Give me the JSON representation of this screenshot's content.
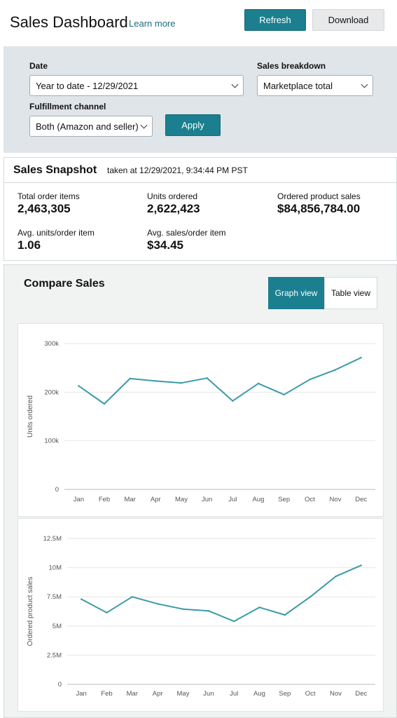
{
  "header": {
    "title": "Sales Dashboard",
    "learn_more": "Learn more",
    "refresh": "Refresh",
    "download": "Download"
  },
  "filters": {
    "date_label": "Date",
    "date_value": "Year to date - 12/29/2021",
    "breakdown_label": "Sales breakdown",
    "breakdown_value": "Marketplace total",
    "channel_label": "Fulfillment channel",
    "channel_value": "Both (Amazon and seller)",
    "apply": "Apply"
  },
  "snapshot": {
    "title": "Sales Snapshot",
    "taken_at": "taken at 12/29/2021, 9:34:44 PM PST",
    "metrics": [
      {
        "label": "Total order items",
        "value": "2,463,305"
      },
      {
        "label": "Units ordered",
        "value": "2,622,423"
      },
      {
        "label": "Ordered product sales",
        "value": "$84,856,784.00"
      },
      {
        "label": "Avg. units/order item",
        "value": "1.06"
      },
      {
        "label": "Avg. sales/order item",
        "value": "$34.45"
      }
    ]
  },
  "compare": {
    "title": "Compare Sales",
    "graph_view": "Graph view",
    "table_view": "Table view",
    "active_view": "Graph view"
  },
  "colors": {
    "accent": "#1b7f8f",
    "line": "#3a9ba6"
  },
  "chart_data": [
    {
      "type": "line",
      "title": "",
      "xlabel": "",
      "ylabel": "Units ordered",
      "categories": [
        "Jan",
        "Feb",
        "Mar",
        "Apr",
        "May",
        "Jun",
        "Jul",
        "Aug",
        "Sep",
        "Oct",
        "Nov",
        "Dec"
      ],
      "values": [
        213000,
        176000,
        228000,
        223000,
        219000,
        229000,
        182000,
        218000,
        195000,
        226000,
        246000,
        271000
      ],
      "ylim": [
        0,
        300000
      ],
      "yticks": [
        0,
        100000,
        200000,
        300000
      ],
      "ytick_labels": [
        "0",
        "100k",
        "200k",
        "300k"
      ],
      "grid": true
    },
    {
      "type": "line",
      "title": "",
      "xlabel": "",
      "ylabel": "Ordered product sales",
      "categories": [
        "Jan",
        "Feb",
        "Mar",
        "Apr",
        "May",
        "Jun",
        "Jul",
        "Aug",
        "Sep",
        "Oct",
        "Nov",
        "Dec"
      ],
      "values": [
        7300000,
        6150000,
        7500000,
        6900000,
        6450000,
        6300000,
        5400000,
        6600000,
        5950000,
        7500000,
        9250000,
        10200000
      ],
      "ylim": [
        0,
        12500000
      ],
      "yticks": [
        0,
        2500000,
        5000000,
        7500000,
        10000000,
        12500000
      ],
      "ytick_labels": [
        "0",
        "2.5M",
        "5M",
        "7.5M",
        "10M",
        "12.5M"
      ],
      "grid": true
    }
  ]
}
